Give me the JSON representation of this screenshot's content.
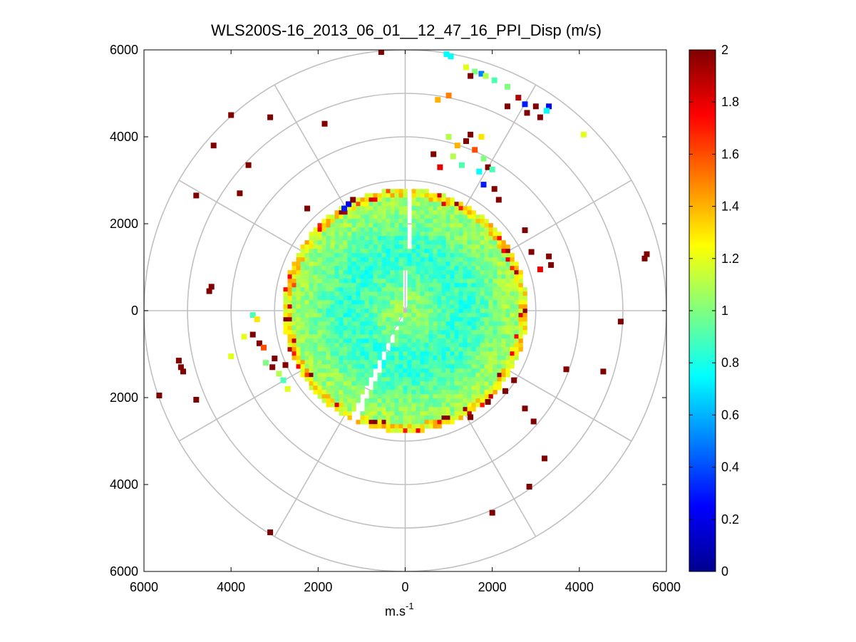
{
  "chart_data": {
    "type": "polar-ppi-heatmap",
    "title": "WLS200S-16_2013_06_01__12_47_16_PPI_Disp (m/s)",
    "xlabel_base": "m.s",
    "xlabel_sup": "-1",
    "xlim": [
      -6000,
      6000
    ],
    "ylim": [
      -6000,
      6000
    ],
    "x_ticks": [
      {
        "value": -6000,
        "label": "6000"
      },
      {
        "value": -4000,
        "label": "4000"
      },
      {
        "value": -2000,
        "label": "2000"
      },
      {
        "value": 0,
        "label": "0"
      },
      {
        "value": 2000,
        "label": "2000"
      },
      {
        "value": 4000,
        "label": "4000"
      },
      {
        "value": 6000,
        "label": "6000"
      }
    ],
    "y_ticks": [
      {
        "value": 6000,
        "label": "6000"
      },
      {
        "value": 4000,
        "label": "4000"
      },
      {
        "value": 2000,
        "label": "2000"
      },
      {
        "value": 0,
        "label": "0"
      },
      {
        "value": -2000,
        "label": "2000"
      },
      {
        "value": -4000,
        "label": "4000"
      },
      {
        "value": -6000,
        "label": "6000"
      }
    ],
    "polar_rings_m": [
      1000,
      2000,
      3000,
      4000,
      5000,
      6000
    ],
    "spoke_angles_deg": [
      0,
      30,
      60,
      90,
      120,
      150,
      180,
      210,
      240,
      270,
      300,
      330
    ],
    "dense_region_radius_m": 2800,
    "gap_beams_deg": [
      88,
      245
    ],
    "colorbar": {
      "min": 0,
      "max": 2,
      "ticks": [
        {
          "value": 0,
          "label": "0"
        },
        {
          "value": 0.2,
          "label": "0.2"
        },
        {
          "value": 0.4,
          "label": "0.4"
        },
        {
          "value": 0.6,
          "label": "0.6"
        },
        {
          "value": 0.8,
          "label": "0.8"
        },
        {
          "value": 1,
          "label": "1"
        },
        {
          "value": 1.2,
          "label": "1.2"
        },
        {
          "value": 1.4,
          "label": "1.4"
        },
        {
          "value": 1.6,
          "label": "1.6"
        },
        {
          "value": 1.8,
          "label": "1.8"
        },
        {
          "value": 2,
          "label": "2"
        }
      ]
    },
    "sparse_points": [
      {
        "x": -550,
        "y": 5950,
        "v": 2.0
      },
      {
        "x": 950,
        "y": 5900,
        "v": 0.75
      },
      {
        "x": 1050,
        "y": 5850,
        "v": 0.75
      },
      {
        "x": 1400,
        "y": 5600,
        "v": 1.2
      },
      {
        "x": 1600,
        "y": 5500,
        "v": 1.0
      },
      {
        "x": 1750,
        "y": 5450,
        "v": 0.5
      },
      {
        "x": 1850,
        "y": 5400,
        "v": 1.1
      },
      {
        "x": 2050,
        "y": 5300,
        "v": 0.9
      },
      {
        "x": 2350,
        "y": 5150,
        "v": 1.0
      },
      {
        "x": 2600,
        "y": 4900,
        "v": 1.9
      },
      {
        "x": 2750,
        "y": 4750,
        "v": 0.3
      },
      {
        "x": 3300,
        "y": 4700,
        "v": 0.2
      },
      {
        "x": 3250,
        "y": 4600,
        "v": 0.75
      },
      {
        "x": 3000,
        "y": 4700,
        "v": 2.0
      },
      {
        "x": 2800,
        "y": 4550,
        "v": 2.0
      },
      {
        "x": 1500,
        "y": 5400,
        "v": 2.0
      },
      {
        "x": 3100,
        "y": 4450,
        "v": 2.0
      },
      {
        "x": 2350,
        "y": 4700,
        "v": 2.0
      },
      {
        "x": 4100,
        "y": 4050,
        "v": 1.2
      },
      {
        "x": 1000,
        "y": 4950,
        "v": 1.5
      },
      {
        "x": 750,
        "y": 4850,
        "v": 1.4
      },
      {
        "x": -4000,
        "y": 4500,
        "v": 2.0
      },
      {
        "x": -3100,
        "y": 4450,
        "v": 2.0
      },
      {
        "x": -1850,
        "y": 4300,
        "v": 2.0
      },
      {
        "x": -4400,
        "y": 3800,
        "v": 2.0
      },
      {
        "x": -3600,
        "y": 3350,
        "v": 2.0
      },
      {
        "x": -3800,
        "y": 2700,
        "v": 2.0
      },
      {
        "x": -4800,
        "y": 2650,
        "v": 2.0
      },
      {
        "x": -2250,
        "y": 2350,
        "v": 2.0
      },
      {
        "x": -4450,
        "y": 550,
        "v": 2.0
      },
      {
        "x": -4500,
        "y": 450,
        "v": 2.0
      },
      {
        "x": 5550,
        "y": 1300,
        "v": 2.0
      },
      {
        "x": 5500,
        "y": 1200,
        "v": 2.0
      },
      {
        "x": 3300,
        "y": 1250,
        "v": 2.0
      },
      {
        "x": 3350,
        "y": 1050,
        "v": 2.0
      },
      {
        "x": 3100,
        "y": 950,
        "v": 1.8
      },
      {
        "x": 4950,
        "y": -250,
        "v": 2.0
      },
      {
        "x": 4550,
        "y": -1400,
        "v": 2.0
      },
      {
        "x": 3700,
        "y": -1350,
        "v": 2.0
      },
      {
        "x": 2750,
        "y": -2250,
        "v": 2.0
      },
      {
        "x": 2950,
        "y": -2550,
        "v": 2.0
      },
      {
        "x": 3200,
        "y": -3400,
        "v": 2.0
      },
      {
        "x": 2850,
        "y": -4050,
        "v": 2.0
      },
      {
        "x": 2000,
        "y": -4650,
        "v": 2.0
      },
      {
        "x": 1500,
        "y": -2450,
        "v": 2.0
      },
      {
        "x": 1900,
        "y": -2100,
        "v": 2.0
      },
      {
        "x": 2300,
        "y": -1850,
        "v": 2.0
      },
      {
        "x": 2500,
        "y": -1600,
        "v": 2.0
      },
      {
        "x": -5200,
        "y": -1150,
        "v": 2.0
      },
      {
        "x": -5150,
        "y": -1300,
        "v": 2.0
      },
      {
        "x": -5100,
        "y": -1400,
        "v": 2.0
      },
      {
        "x": -5650,
        "y": -1950,
        "v": 2.0
      },
      {
        "x": -4800,
        "y": -2050,
        "v": 2.0
      },
      {
        "x": -3500,
        "y": -550,
        "v": 2.0
      },
      {
        "x": -3700,
        "y": -600,
        "v": 1.2
      },
      {
        "x": -3350,
        "y": -750,
        "v": 2.0
      },
      {
        "x": -3250,
        "y": -850,
        "v": 1.6
      },
      {
        "x": -3200,
        "y": -1200,
        "v": 1.0
      },
      {
        "x": -3050,
        "y": -1300,
        "v": 2.0
      },
      {
        "x": -2900,
        "y": -1450,
        "v": 1.1
      },
      {
        "x": -2800,
        "y": -1600,
        "v": 0.9
      },
      {
        "x": -2700,
        "y": -1800,
        "v": 1.2
      },
      {
        "x": -3000,
        "y": -1100,
        "v": 2.0
      },
      {
        "x": -2750,
        "y": -1250,
        "v": 2.0
      },
      {
        "x": -4000,
        "y": -1050,
        "v": 1.2
      },
      {
        "x": -3500,
        "y": -100,
        "v": 0.9
      },
      {
        "x": -3400,
        "y": -200,
        "v": 1.3
      },
      {
        "x": -3100,
        "y": -5100,
        "v": 2.0
      },
      {
        "x": 1100,
        "y": 3550,
        "v": 1.1
      },
      {
        "x": 1200,
        "y": 3800,
        "v": 1.4
      },
      {
        "x": 1400,
        "y": 3900,
        "v": 2.0
      },
      {
        "x": 1600,
        "y": 3700,
        "v": 1.6
      },
      {
        "x": 1800,
        "y": 3500,
        "v": 1.0
      },
      {
        "x": 1900,
        "y": 3300,
        "v": 2.0
      },
      {
        "x": 1700,
        "y": 3200,
        "v": 0.75
      },
      {
        "x": 1300,
        "y": 3350,
        "v": 0.9
      },
      {
        "x": 800,
        "y": 3300,
        "v": 1.8
      },
      {
        "x": 650,
        "y": 3600,
        "v": 2.0
      },
      {
        "x": 1000,
        "y": 4000,
        "v": 1.1
      },
      {
        "x": 1500,
        "y": 4050,
        "v": 2.0
      },
      {
        "x": 1750,
        "y": 4000,
        "v": 1.3
      },
      {
        "x": 2000,
        "y": 3250,
        "v": 0.9
      },
      {
        "x": 1800,
        "y": 2900,
        "v": 0.3
      },
      {
        "x": 2050,
        "y": 2800,
        "v": 2.0
      },
      {
        "x": 2150,
        "y": 2550,
        "v": 2.0
      },
      {
        "x": 2750,
        "y": 1850,
        "v": 2.0
      },
      {
        "x": 2900,
        "y": 1350,
        "v": 2.0
      },
      {
        "x": -1300,
        "y": 2450,
        "v": 0.2
      },
      {
        "x": -1400,
        "y": 2350,
        "v": 0.3
      },
      {
        "x": -1200,
        "y": 2550,
        "v": 2.0
      }
    ]
  }
}
